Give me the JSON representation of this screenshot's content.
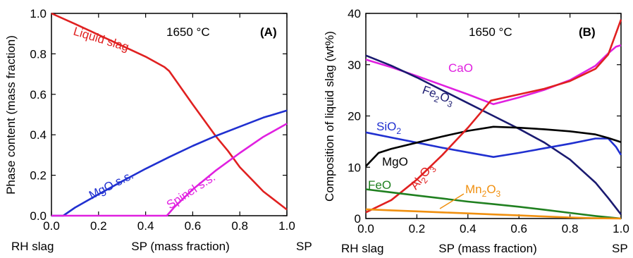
{
  "chart_data": [
    {
      "type": "line",
      "panel_label": "(A)",
      "temperature_label": "1650 °C",
      "xlabel": "SP (mass fraction)",
      "ylabel": "Phase content (mass fraction)",
      "xlim": [
        0,
        1
      ],
      "ylim": [
        0,
        1
      ],
      "xticks": [
        "0.0",
        "0.2",
        "0.4",
        "0.6",
        "0.8",
        "1.0"
      ],
      "yticks": [
        "0.0",
        "0.2",
        "0.4",
        "0.6",
        "0.8",
        "1.0"
      ],
      "x_end_labels": {
        "left": "RH slag",
        "right": "SP"
      },
      "series": [
        {
          "name": "Liquid slag",
          "color": "#e02020",
          "points": [
            [
              0,
              1.0
            ],
            [
              0.1,
              0.948
            ],
            [
              0.2,
              0.894
            ],
            [
              0.3,
              0.84
            ],
            [
              0.4,
              0.786
            ],
            [
              0.48,
              0.735
            ],
            [
              0.5,
              0.715
            ],
            [
              0.6,
              0.55
            ],
            [
              0.7,
              0.39
            ],
            [
              0.75,
              0.32
            ],
            [
              0.8,
              0.24
            ],
            [
              0.9,
              0.12
            ],
            [
              1.0,
              0.03
            ]
          ]
        },
        {
          "name": "MgO s.s.",
          "color": "#2030d0",
          "points": [
            [
              0,
              0.0
            ],
            [
              0.05,
              0.0
            ],
            [
              0.1,
              0.04
            ],
            [
              0.2,
              0.106
            ],
            [
              0.3,
              0.17
            ],
            [
              0.4,
              0.232
            ],
            [
              0.5,
              0.29
            ],
            [
              0.6,
              0.345
            ],
            [
              0.7,
              0.395
            ],
            [
              0.8,
              0.44
            ],
            [
              0.9,
              0.485
            ],
            [
              1.0,
              0.52
            ]
          ]
        },
        {
          "name": "Spinel s.s.",
          "color": "#e020e0",
          "points": [
            [
              0,
              0.0
            ],
            [
              0.49,
              0.0
            ],
            [
              0.52,
              0.04
            ],
            [
              0.6,
              0.13
            ],
            [
              0.7,
              0.225
            ],
            [
              0.8,
              0.31
            ],
            [
              0.9,
              0.39
            ],
            [
              1.0,
              0.455
            ]
          ]
        }
      ]
    },
    {
      "type": "line",
      "panel_label": "(B)",
      "temperature_label": "1650 °C",
      "xlabel": "SP (mass fraction)",
      "ylabel": "Composition of liquid slag (wt%)",
      "xlim": [
        0,
        1
      ],
      "ylim": [
        0,
        40
      ],
      "xticks": [
        "0.0",
        "0.2",
        "0.4",
        "0.6",
        "0.8",
        "1.0"
      ],
      "yticks": [
        "0",
        "10",
        "20",
        "30",
        "40"
      ],
      "x_end_labels": {
        "left": "RH slag",
        "right": "SP"
      },
      "series": [
        {
          "name": "CaO",
          "color": "#e020e0",
          "points": [
            [
              0,
              31.0
            ],
            [
              0.1,
              29.5
            ],
            [
              0.2,
              27.8
            ],
            [
              0.3,
              26.0
            ],
            [
              0.4,
              24.2
            ],
            [
              0.5,
              22.3
            ],
            [
              0.6,
              23.6
            ],
            [
              0.7,
              25.1
            ],
            [
              0.8,
              27.0
            ],
            [
              0.9,
              29.8
            ],
            [
              0.95,
              32.2
            ],
            [
              0.98,
              33.5
            ],
            [
              1.0,
              33.8
            ]
          ]
        },
        {
          "name": "Fe2O3",
          "name_main": "Fe",
          "name_sub1": "2",
          "name_mid": "O",
          "name_sub2": "3",
          "color": "#1a1a70",
          "points": [
            [
              0,
              31.8
            ],
            [
              0.1,
              29.8
            ],
            [
              0.2,
              27.5
            ],
            [
              0.3,
              25.0
            ],
            [
              0.4,
              22.5
            ],
            [
              0.5,
              20.0
            ],
            [
              0.6,
              17.5
            ],
            [
              0.7,
              14.8
            ],
            [
              0.8,
              11.5
            ],
            [
              0.9,
              7.0
            ],
            [
              0.95,
              4.0
            ],
            [
              1.0,
              0.8
            ]
          ]
        },
        {
          "name": "SiO2",
          "name_main": "SiO",
          "name_sub1": "2",
          "color": "#2030d0",
          "points": [
            [
              0,
              16.8
            ],
            [
              0.1,
              15.8
            ],
            [
              0.2,
              14.8
            ],
            [
              0.3,
              13.8
            ],
            [
              0.4,
              12.9
            ],
            [
              0.5,
              12.0
            ],
            [
              0.6,
              12.8
            ],
            [
              0.7,
              13.7
            ],
            [
              0.8,
              14.6
            ],
            [
              0.9,
              15.6
            ],
            [
              0.95,
              15.6
            ],
            [
              0.98,
              14.0
            ],
            [
              1.0,
              12.4
            ]
          ]
        },
        {
          "name": "MgO",
          "color": "#000000",
          "points": [
            [
              0,
              10.2
            ],
            [
              0.05,
              12.8
            ],
            [
              0.1,
              13.6
            ],
            [
              0.2,
              14.8
            ],
            [
              0.3,
              16.0
            ],
            [
              0.4,
              17.1
            ],
            [
              0.5,
              17.9
            ],
            [
              0.6,
              17.7
            ],
            [
              0.7,
              17.4
            ],
            [
              0.8,
              17.0
            ],
            [
              0.9,
              16.4
            ],
            [
              0.95,
              15.7
            ],
            [
              1.0,
              14.9
            ]
          ]
        },
        {
          "name": "Al2O3",
          "name_main": "Al",
          "name_sub1": "2",
          "name_mid": "O",
          "name_sub2": "3",
          "color": "#e02020",
          "points": [
            [
              0,
              1.2
            ],
            [
              0.1,
              3.6
            ],
            [
              0.2,
              7.6
            ],
            [
              0.3,
              12.4
            ],
            [
              0.4,
              17.7
            ],
            [
              0.49,
              23.0
            ],
            [
              0.6,
              24.2
            ],
            [
              0.7,
              25.3
            ],
            [
              0.8,
              26.8
            ],
            [
              0.9,
              29.2
            ],
            [
              0.95,
              32.0
            ],
            [
              1.0,
              38.8
            ]
          ]
        },
        {
          "name": "FeO",
          "color": "#208020",
          "points": [
            [
              0,
              5.7
            ],
            [
              0.1,
              5.1
            ],
            [
              0.2,
              4.5
            ],
            [
              0.3,
              3.9
            ],
            [
              0.4,
              3.3
            ],
            [
              0.5,
              2.8
            ],
            [
              0.6,
              2.3
            ],
            [
              0.7,
              1.7
            ],
            [
              0.8,
              1.1
            ],
            [
              0.9,
              0.5
            ],
            [
              1.0,
              0.0
            ]
          ]
        },
        {
          "name": "Mn2O3",
          "name_main": "Mn",
          "name_sub1": "2",
          "name_mid": "O",
          "name_sub2": "3",
          "color": "#f09010",
          "points": [
            [
              0,
              1.8
            ],
            [
              0.1,
              1.6
            ],
            [
              0.2,
              1.4
            ],
            [
              0.3,
              1.2
            ],
            [
              0.4,
              1.0
            ],
            [
              0.5,
              0.8
            ],
            [
              0.6,
              0.6
            ],
            [
              0.7,
              0.4
            ],
            [
              0.8,
              0.2
            ],
            [
              0.9,
              0.05
            ],
            [
              1.0,
              0.0
            ]
          ]
        }
      ]
    }
  ]
}
